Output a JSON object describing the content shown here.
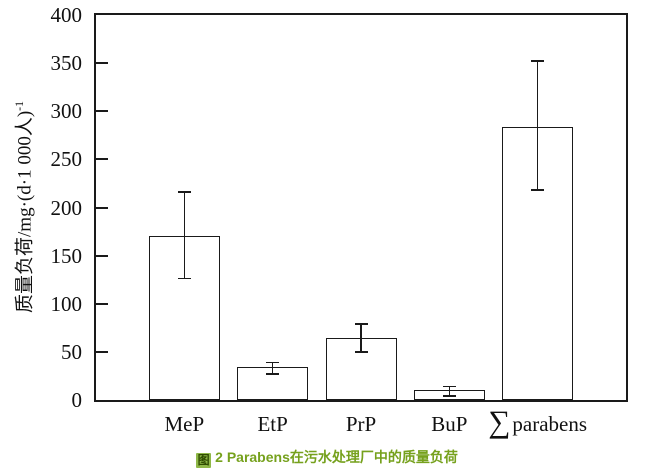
{
  "figure": {
    "caption_icon_char": "图",
    "caption_rest": "2 Parabens在污水处理厂中的质量负荷"
  },
  "colors": {
    "line": "#1a1a1a",
    "text": "#111111",
    "background": "#ffffff",
    "bar_fill": "#ffffff",
    "bar_border": "#1a1a1a",
    "caption_text": "#76a11d",
    "caption_icon_bg": "#8fb848",
    "caption_icon_fg": "#2f4d00"
  },
  "chart_data": {
    "type": "bar",
    "title": "",
    "xlabel": "",
    "ylabel": "质量负荷/mg·(d·1 000人)⁻¹",
    "ylabel_main": "质量负荷/mg·(d·1 000人)",
    "ylabel_sup": "-1",
    "ylim": [
      0,
      400
    ],
    "yticks": [
      0,
      50,
      100,
      150,
      200,
      250,
      300,
      350,
      400
    ],
    "grid": false,
    "legend": "none",
    "categories": [
      "MeP",
      "EtP",
      "PrP",
      "BuP",
      "∑parabens"
    ],
    "values": [
      170,
      34,
      64,
      10,
      284
    ],
    "error_low": [
      126,
      27,
      50,
      4,
      218
    ],
    "error_high": [
      216,
      39,
      79,
      14,
      352
    ]
  }
}
